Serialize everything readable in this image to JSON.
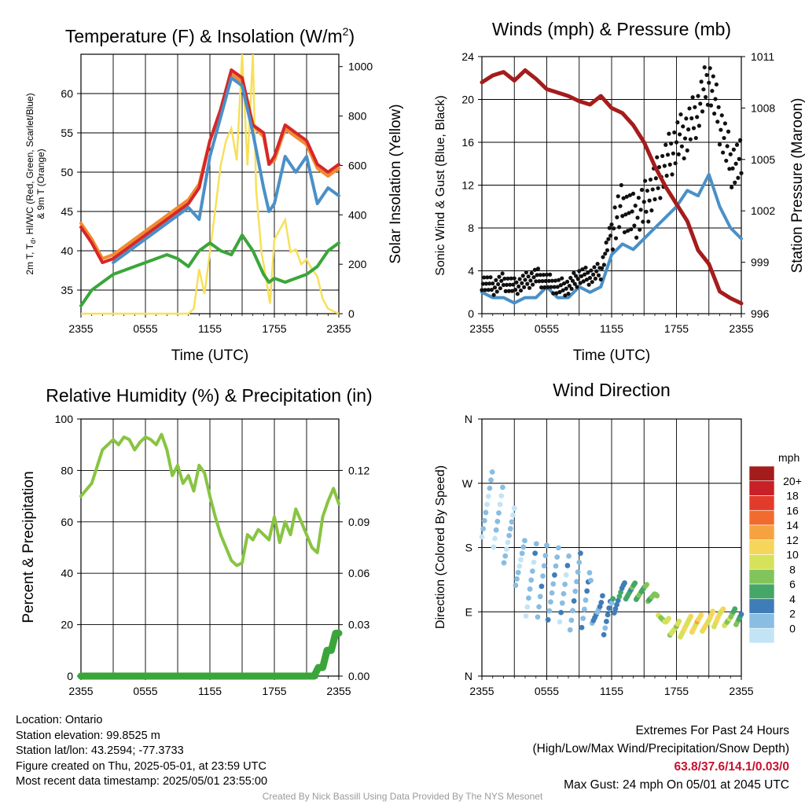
{
  "chart_data": [
    {
      "type": "line",
      "title": "Temperature (F) & Insolation (W/m",
      "title_superscript": "2",
      "title_suffix": ")",
      "xlabel": "Time (UTC)",
      "ylabel_left_line1": "2m T, T",
      "ylabel_left_sub": "d",
      "ylabel_left_line1b": ", HI/WC (Red, Green, Scarlet/Blue)",
      "ylabel_left_line2": "& 9m T (Orange)",
      "ylabel_right": "Solar Insolation (Yellow)",
      "xticks": [
        "2355",
        "0555",
        "1155",
        "1755",
        "2355"
      ],
      "ylim": [
        32,
        65
      ],
      "yticks": [
        35,
        40,
        45,
        50,
        55,
        60
      ],
      "ylim_right": [
        0,
        1050
      ],
      "yticks_right": [
        0,
        200,
        400,
        600,
        800,
        1000
      ],
      "grid": true,
      "x_hours": [
        0,
        1,
        2,
        3,
        4,
        5,
        6,
        7,
        8,
        9,
        10,
        11,
        12,
        13,
        14,
        15,
        16,
        17,
        17.5,
        18,
        19,
        20,
        21,
        22,
        23,
        24
      ],
      "series": [
        {
          "color": "#d62728",
          "values": [
            43,
            41,
            38.5,
            39,
            40,
            41,
            42,
            43,
            44,
            45,
            46,
            48,
            54,
            58,
            63,
            62,
            56,
            55,
            51,
            52,
            56,
            55,
            54,
            51,
            50,
            51
          ]
        },
        {
          "color": "#f28a30",
          "values": [
            43.5,
            41.5,
            39,
            39.5,
            40.5,
            41.5,
            42.5,
            43.5,
            44.5,
            45.5,
            46.5,
            48.5,
            54,
            57.5,
            62.5,
            61.5,
            56,
            54.5,
            51,
            51.5,
            55.5,
            54.5,
            53.5,
            50.5,
            49.5,
            50.5
          ]
        },
        {
          "color": "#4a90c8",
          "values": [
            null,
            null,
            null,
            38.5,
            39.5,
            40.5,
            41.5,
            42.5,
            43.5,
            44.5,
            45.5,
            44,
            52,
            57,
            62,
            61,
            55,
            48,
            45,
            46,
            52,
            50,
            52,
            46,
            48,
            47
          ]
        },
        {
          "color": "#3aa63a",
          "values": [
            33,
            35,
            36,
            37,
            37.5,
            38,
            38.5,
            39,
            39.5,
            39,
            38,
            40,
            41,
            40,
            39.5,
            42,
            40,
            37,
            36,
            36.5,
            36,
            36.5,
            37,
            38,
            40,
            41
          ]
        }
      ],
      "insolation": {
        "color": "#f7e05a",
        "x_hours": [
          0,
          8,
          9,
          10,
          10.5,
          11,
          11.5,
          12,
          12.5,
          13,
          13.5,
          14,
          14.5,
          15,
          15.5,
          16,
          16.3,
          16.8,
          17.2,
          17.6,
          18,
          19,
          19.5,
          20,
          20.5,
          21,
          21.5,
          22,
          22.5,
          23,
          24
        ],
        "values": [
          0,
          0,
          0,
          0,
          20,
          180,
          80,
          250,
          420,
          600,
          700,
          750,
          620,
          1050,
          600,
          1050,
          500,
          250,
          150,
          40,
          300,
          380,
          250,
          260,
          200,
          220,
          180,
          150,
          60,
          20,
          0
        ]
      }
    },
    {
      "type": "line",
      "title": "Winds (mph) & Pressure (mb)",
      "xlabel": "Time (UTC)",
      "ylabel_left": "Sonic Wind & Gust (Blue, Black)",
      "ylabel_right": "Station Pressure (Maroon)",
      "xticks": [
        "2355",
        "0555",
        "1155",
        "1755",
        "2355"
      ],
      "ylim": [
        0,
        24
      ],
      "yticks": [
        0,
        4,
        8,
        12,
        16,
        20,
        24
      ],
      "ylim_right": [
        996,
        1011
      ],
      "yticks_right": [
        996,
        999,
        1002,
        1005,
        1008,
        1011
      ],
      "grid": true,
      "series": [
        {
          "name": "pressure",
          "color": "#a51c1c",
          "x_hours": [
            0,
            1,
            2,
            3,
            4,
            5,
            6,
            7,
            8,
            9,
            10,
            11,
            12,
            13,
            14,
            15,
            16,
            17,
            18,
            19,
            20,
            21,
            22,
            23,
            24
          ],
          "values": [
            1009.5,
            1009.9,
            1010.1,
            1009.6,
            1010.2,
            1009.7,
            1009.1,
            1008.9,
            1008.7,
            1008.4,
            1008.2,
            1008.7,
            1008.0,
            1007.7,
            1007.0,
            1006.0,
            1004.6,
            1003.4,
            1002.4,
            1001.4,
            999.7,
            998.9,
            997.3,
            996.9,
            996.6
          ]
        },
        {
          "name": "wind",
          "color": "#4a90c8",
          "x_hours": [
            0,
            1,
            2,
            3,
            4,
            5,
            6,
            7,
            8,
            9,
            10,
            11,
            12,
            13,
            14,
            15,
            16,
            17,
            18,
            19,
            20,
            21,
            22,
            23,
            24
          ],
          "values": [
            2,
            1.5,
            1.5,
            1,
            1.5,
            1.5,
            2.5,
            1.5,
            1.5,
            2.5,
            2,
            2.5,
            5.5,
            6.5,
            6,
            7,
            8,
            9,
            10,
            11.5,
            11,
            13,
            10,
            8,
            7
          ]
        },
        {
          "name": "gust",
          "color": "#111111",
          "x_hours": [
            0,
            1,
            2,
            3,
            4,
            5,
            6,
            7,
            8,
            9,
            10,
            11,
            12,
            13,
            14,
            15,
            16,
            17,
            18,
            19,
            20,
            21,
            22,
            23,
            24
          ],
          "values": [
            3,
            2.5,
            3,
            2.5,
            3,
            3.5,
            3,
            2.5,
            2.5,
            3.5,
            3.5,
            4,
            8,
            10,
            9,
            10,
            12,
            14,
            16,
            17,
            19,
            22,
            18,
            14,
            14
          ]
        }
      ]
    },
    {
      "type": "line",
      "title": "Relative Humidity (%) & Precipitation (in)",
      "ylabel_left": "Percent & Precipitation",
      "xticks": [
        "2355",
        "0555",
        "1155",
        "1755",
        "2355"
      ],
      "ylim": [
        0,
        100
      ],
      "yticks": [
        0,
        20,
        40,
        60,
        80,
        100
      ],
      "ylim_right": [
        0,
        0.15
      ],
      "yticks_right": [
        "0.00",
        "0.03",
        "0.06",
        "0.09",
        "0.12"
      ],
      "grid": true,
      "series": [
        {
          "name": "rh",
          "color": "#88c442",
          "x_hours": [
            0,
            1,
            2,
            3,
            3.5,
            4,
            4.5,
            5,
            5.5,
            6,
            6.5,
            7,
            7.5,
            8,
            8.5,
            9,
            9.5,
            10,
            10.5,
            11,
            11.5,
            12,
            12.5,
            13,
            13.5,
            14,
            14.5,
            15,
            15.5,
            16,
            16.5,
            17,
            17.5,
            18,
            18.5,
            19,
            19.5,
            20,
            20.5,
            21,
            21.5,
            22,
            22.5,
            23,
            23.5,
            24
          ],
          "values": [
            70,
            75,
            88,
            92,
            90,
            93,
            92,
            88,
            91,
            93,
            92,
            90,
            94,
            88,
            78,
            82,
            75,
            78,
            72,
            82,
            79,
            70,
            62,
            55,
            50,
            45,
            43,
            44,
            55,
            53,
            57,
            55,
            53,
            62,
            52,
            60,
            55,
            65,
            60,
            55,
            50,
            48,
            62,
            68,
            73,
            67
          ]
        },
        {
          "name": "precip",
          "color": "#3aa63a",
          "x_hours": [
            0,
            21.7,
            22.1,
            22.5,
            22.9,
            23.3,
            23.7,
            24
          ],
          "values": [
            0,
            0,
            0.005,
            0.005,
            0.015,
            0.015,
            0.025,
            0.025
          ]
        }
      ]
    },
    {
      "type": "scatter",
      "title": "Wind Direction",
      "ylabel_left": "Direction (Colored By Speed)",
      "xticks": [
        "2355",
        "0555",
        "1155",
        "1755",
        "2355"
      ],
      "yticks": [
        "N",
        "E",
        "S",
        "W",
        "N"
      ],
      "grid": true,
      "colorbar_title": "mph",
      "colorbar_labels": [
        "20+",
        "18",
        "16",
        "14",
        "12",
        "10",
        "8",
        "6",
        "4",
        "2",
        "0"
      ],
      "colorbar_colors": [
        "#a51c1c",
        "#c91f26",
        "#e33b2b",
        "#f26b2e",
        "#f7a241",
        "#f5d65a",
        "#d6e25a",
        "#82c45c",
        "#44a667",
        "#3f7db8",
        "#89bde2",
        "#c3e4f5"
      ]
    }
  ],
  "info_left": {
    "location": "Location: Ontario",
    "elevation": "Station elevation: 99.8525 m",
    "latlon": "Station lat/lon: 43.2594; -77.3733",
    "created": "Figure created on Thu, 2025-05-01, at 23:59 UTC",
    "recent": "Most recent data timestamp: 2025/05/01 23:55:00"
  },
  "info_right": {
    "heading": "Extremes For Past 24 Hours",
    "subheading": "(High/Low/Max Wind/Precipitation/Snow Depth)",
    "values": "63.8/37.6/14.1/0.03/0",
    "gust": "Max Gust: 24 mph On 05/01 at 2045 UTC"
  },
  "credit": "Created By Nick Bassill Using Data Provided By The NYS Mesonet"
}
